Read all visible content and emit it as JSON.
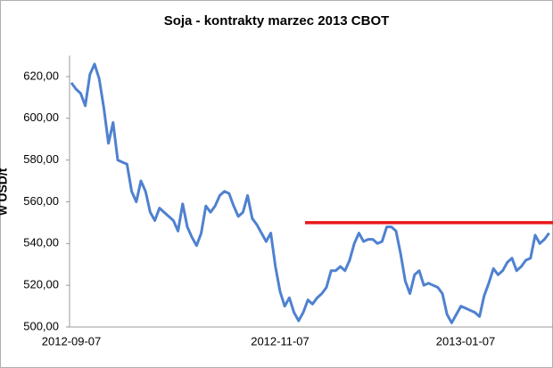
{
  "chart_data": {
    "type": "line",
    "title": "Soja - kontrakty marzec 2013 CBOT",
    "y_label": "w USD/t",
    "categories": [
      "2012-09-07",
      null,
      null,
      null,
      null,
      null,
      null,
      null,
      null,
      null,
      null,
      null,
      null,
      null,
      null,
      null,
      null,
      null,
      null,
      null,
      null,
      null,
      null,
      null,
      null,
      null,
      null,
      null,
      null,
      null,
      null,
      null,
      null,
      null,
      null,
      null,
      null,
      null,
      null,
      null,
      null,
      null,
      null,
      null,
      null,
      "2012-11-07",
      null,
      null,
      null,
      null,
      null,
      null,
      null,
      null,
      null,
      null,
      null,
      null,
      null,
      null,
      null,
      null,
      null,
      null,
      null,
      null,
      null,
      null,
      null,
      null,
      null,
      null,
      null,
      null,
      null,
      null,
      null,
      null,
      null,
      null,
      null,
      null,
      null,
      null,
      null,
      "2013-01-07",
      null,
      null,
      null,
      null,
      null,
      null,
      null,
      null,
      null,
      null,
      null,
      null,
      null,
      null,
      null,
      null,
      null,
      null
    ],
    "values": [
      617,
      614,
      612,
      606,
      621,
      626,
      619,
      605,
      588,
      598,
      580,
      579,
      578,
      565,
      560,
      570,
      565,
      555,
      551,
      557,
      555,
      553,
      551,
      546,
      559,
      548,
      543,
      539,
      545,
      558,
      555,
      558,
      563,
      565,
      564,
      558,
      553,
      555,
      563,
      552,
      549,
      545,
      541,
      545,
      529,
      517,
      510,
      514,
      507,
      503,
      507,
      513,
      511,
      514,
      516,
      519,
      527,
      527,
      529,
      527,
      532,
      540,
      545,
      541,
      542,
      542,
      540,
      541,
      548,
      548,
      546,
      535,
      522,
      516,
      525,
      527,
      520,
      521,
      520,
      519,
      516,
      506,
      502,
      506,
      510,
      509,
      508,
      507,
      505,
      515,
      521,
      528,
      525,
      527,
      531,
      533,
      527,
      529,
      532,
      533,
      544,
      540,
      542,
      545
    ],
    "color": "#4f81d0",
    "reference_line": {
      "value": 550,
      "color": "#e8161b"
    },
    "ylim": [
      500,
      630
    ],
    "yticks": [
      {
        "value": 500,
        "label": "500,00"
      },
      {
        "value": 520,
        "label": "520,00"
      },
      {
        "value": 540,
        "label": "540,00"
      },
      {
        "value": 560,
        "label": "560,00"
      },
      {
        "value": 580,
        "label": "580,00"
      },
      {
        "value": 600,
        "label": "600,00"
      },
      {
        "value": 620,
        "label": "620,00"
      }
    ],
    "grid": false
  }
}
